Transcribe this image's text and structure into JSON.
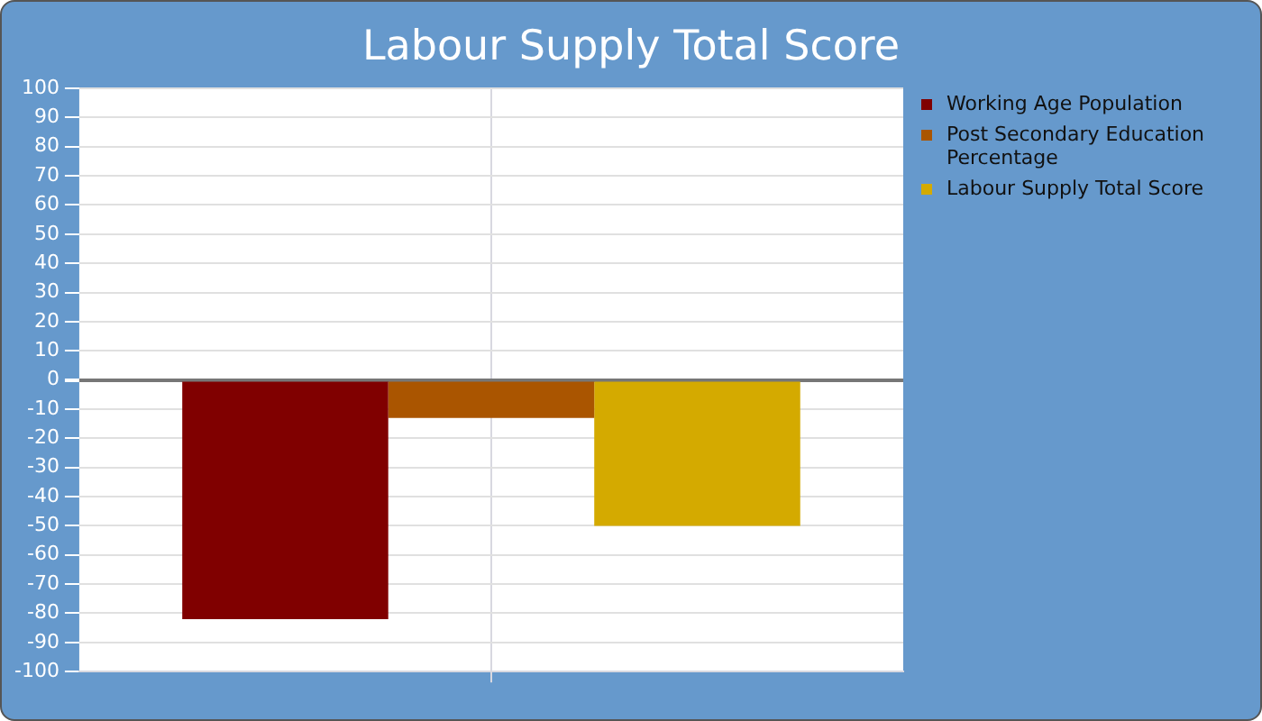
{
  "chart_data": {
    "type": "bar",
    "title": "Labour Supply Total Score",
    "categories": [
      null
    ],
    "series": [
      {
        "name": "Working Age Population",
        "color": "#800000",
        "values": [
          -82
        ]
      },
      {
        "name": "Post Secondary Education Percentage",
        "color": "#aa5500",
        "values": [
          -13
        ]
      },
      {
        "name": "Labour Supply Total Score",
        "color": "#d4aa00",
        "values": [
          -50
        ]
      }
    ],
    "ylim": [
      -100,
      100
    ],
    "yticks": [
      -100,
      -90,
      -80,
      -70,
      -60,
      -50,
      -40,
      -30,
      -20,
      -10,
      0,
      10,
      20,
      30,
      40,
      50,
      60,
      70,
      80,
      90,
      100
    ],
    "grid": true,
    "legend": "right"
  }
}
